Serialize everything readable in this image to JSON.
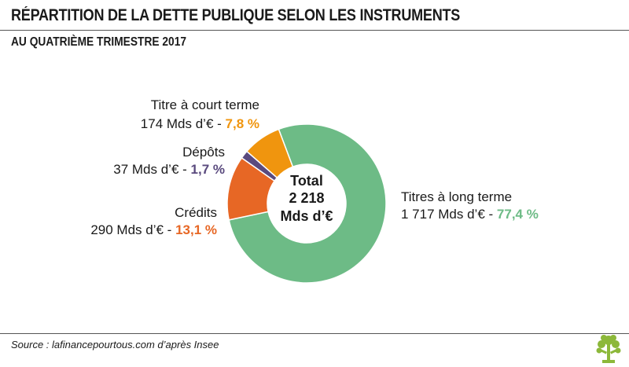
{
  "header": {
    "title": "RÉPARTITION DE LA DETTE PUBLIQUE SELON LES INSTRUMENTS",
    "subtitle": "AU QUATRIÈME TRIMESTRE 2017"
  },
  "footer": {
    "source": "Source : lafinancepourtous.com d’après Insee"
  },
  "chart_data": {
    "type": "pie",
    "donut": true,
    "center_label": [
      "Total",
      "2 218",
      "Mds d’€"
    ],
    "categories": [
      "Titres à long terme",
      "Crédits",
      "Dépôts",
      "Titre à court terme"
    ],
    "values": [
      1717,
      290,
      37,
      174
    ],
    "value_labels": [
      "1 717 Mds d’€",
      "290 Mds d’€",
      "37 Mds d’€",
      "174 Mds d’€"
    ],
    "percent_labels": [
      "77,4 %",
      "13,1 %",
      "1,7 %",
      "7,8 %"
    ],
    "percent_values": [
      77.4,
      13.1,
      1.7,
      7.8
    ],
    "colors": [
      "#6dbb86",
      "#e76725",
      "#5a4a7e",
      "#f0950e"
    ],
    "percent_colors": [
      "#6dbb86",
      "#e76725",
      "#5a4a7e",
      "#f0950e"
    ],
    "total": 2218
  }
}
